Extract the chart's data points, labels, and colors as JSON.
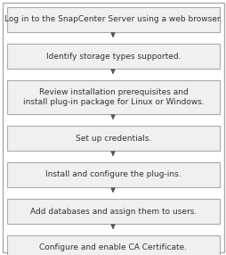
{
  "steps": [
    "Log in to the SnapCenter Server using a web browser.",
    "Identify storage types supported.",
    "Review installation prerequisites and\ninstall plug-in package for Linux or Windows.",
    "Set up credentials.",
    "Install and configure the plug-ins.",
    "Add databases and assign them to users.",
    "Configure and enable CA Certificate."
  ],
  "box_facecolor": "#f0f0f0",
  "box_edgecolor": "#aaaaaa",
  "arrow_color": "#555555",
  "text_color": "#333333",
  "bg_color": "#ffffff",
  "border_color": "#aaaaaa",
  "fontsize": 6.5,
  "figwidth": 2.55,
  "figheight": 2.86,
  "dpi": 100
}
